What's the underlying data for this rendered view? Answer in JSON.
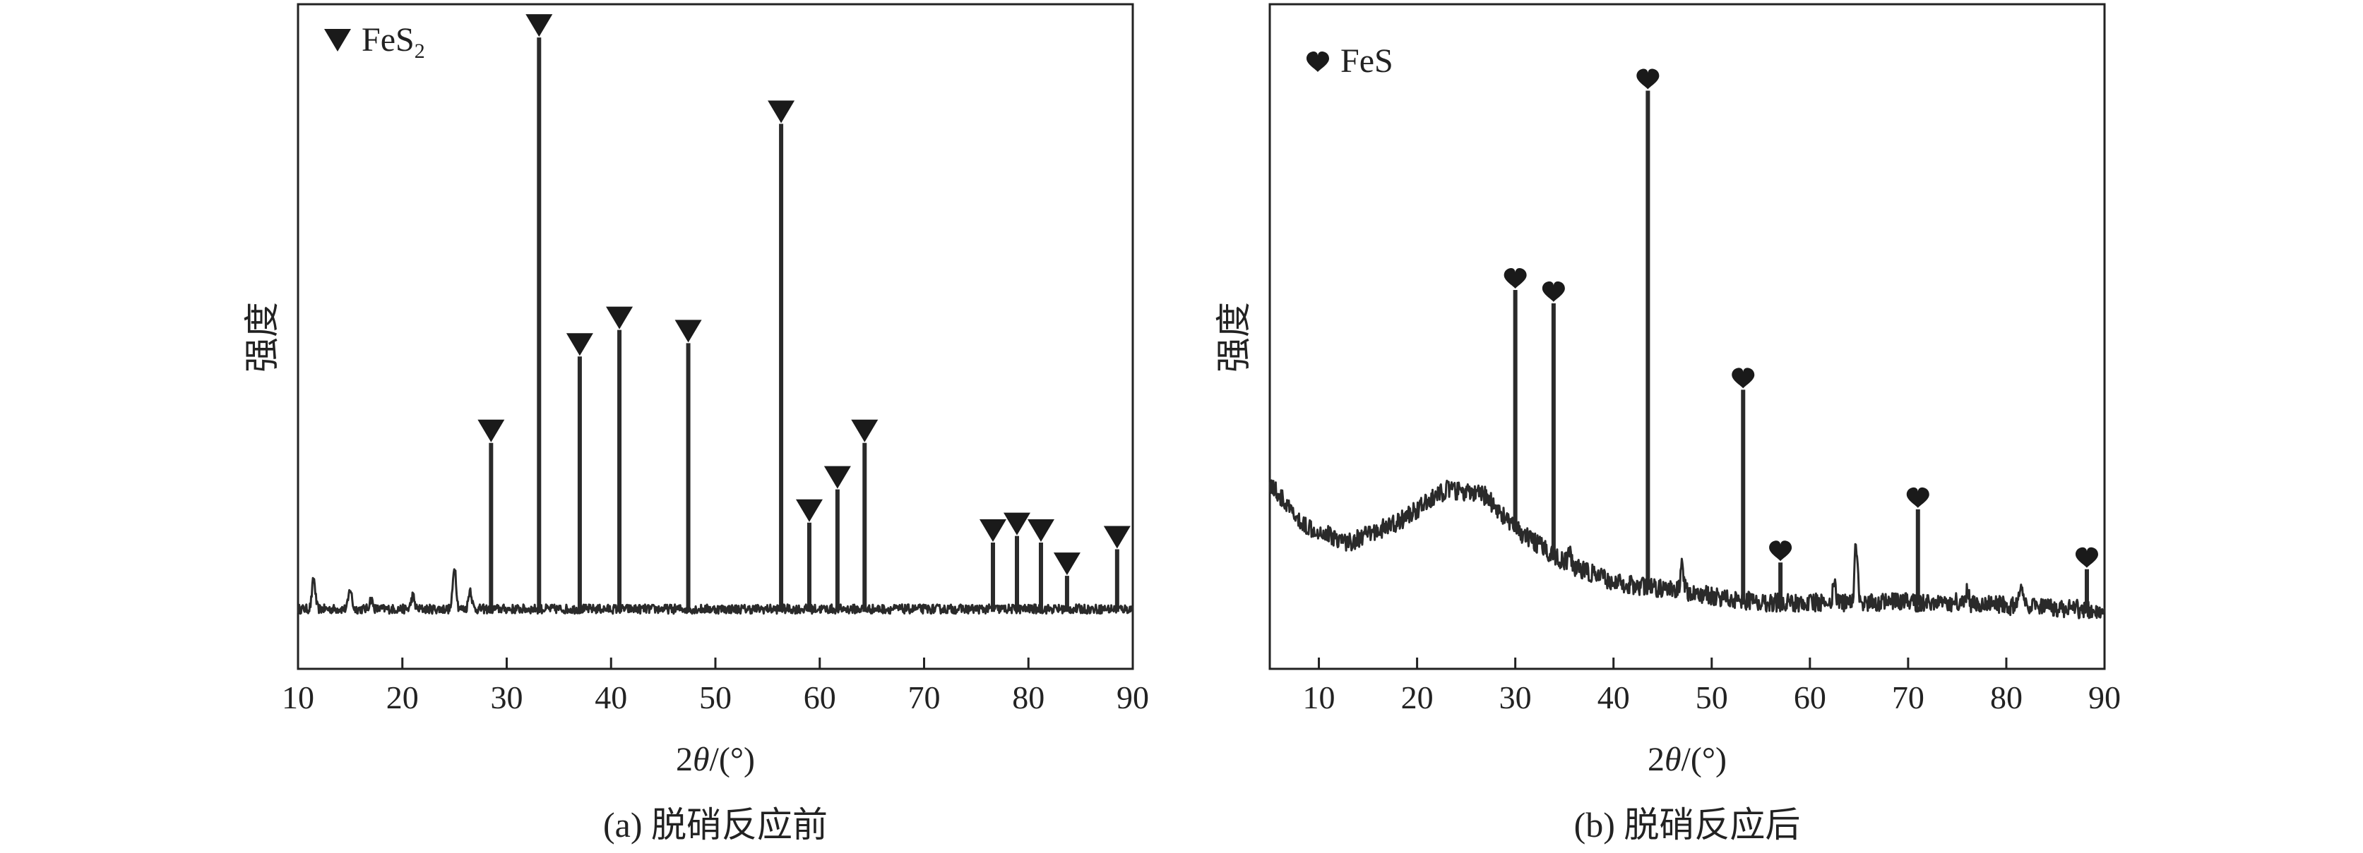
{
  "chart_data": [
    {
      "type": "line",
      "panel": "a",
      "caption": "(a) 脱硝反应前",
      "xlabel_prefix": "2",
      "xlabel_theta": "θ",
      "xlabel_suffix": "/(°)",
      "ylabel": "强度",
      "xlim": [
        10,
        90
      ],
      "xticks": [
        10,
        20,
        30,
        40,
        50,
        60,
        70,
        80,
        90
      ],
      "ylim": [
        0,
        100
      ],
      "legend": {
        "position": "top-left",
        "marker": "triangle-down",
        "text": "FeS",
        "sub": "2"
      },
      "baseline": 9,
      "noise": 0.7,
      "marker_color": "#1a1a1a",
      "background_peaks": [
        {
          "x": 11.5,
          "y": 13.5
        },
        {
          "x": 15.0,
          "y": 12.0
        },
        {
          "x": 17.0,
          "y": 10.5
        },
        {
          "x": 21.0,
          "y": 11.0
        },
        {
          "x": 25.0,
          "y": 15.5
        },
        {
          "x": 26.5,
          "y": 12.0
        }
      ],
      "peaks": [
        {
          "x": 28.5,
          "y": 34,
          "marker": true
        },
        {
          "x": 33.1,
          "y": 95,
          "marker": true
        },
        {
          "x": 37.0,
          "y": 47,
          "marker": true
        },
        {
          "x": 40.8,
          "y": 51,
          "marker": true
        },
        {
          "x": 47.4,
          "y": 49,
          "marker": true
        },
        {
          "x": 56.3,
          "y": 82,
          "marker": true
        },
        {
          "x": 59.0,
          "y": 22,
          "marker": true
        },
        {
          "x": 61.7,
          "y": 27,
          "marker": true
        },
        {
          "x": 64.3,
          "y": 34,
          "marker": true
        },
        {
          "x": 76.6,
          "y": 19,
          "marker": true
        },
        {
          "x": 78.9,
          "y": 20,
          "marker": true
        },
        {
          "x": 81.2,
          "y": 19,
          "marker": true
        },
        {
          "x": 83.7,
          "y": 14,
          "marker": true
        },
        {
          "x": 88.5,
          "y": 18,
          "marker": true
        }
      ]
    },
    {
      "type": "line",
      "panel": "b",
      "caption": "(b) 脱硝反应后",
      "xlabel_prefix": "2",
      "xlabel_theta": "θ",
      "xlabel_suffix": "/(°)",
      "ylabel": "强度",
      "xlim": [
        5,
        90
      ],
      "xticks": [
        10,
        20,
        30,
        40,
        50,
        60,
        70,
        80,
        90
      ],
      "ylim": [
        0,
        100
      ],
      "legend": {
        "position": "top-left",
        "marker": "heart",
        "text": "FeS",
        "sub": ""
      },
      "baseline_curve": [
        {
          "x": 5,
          "y": 28
        },
        {
          "x": 8,
          "y": 22
        },
        {
          "x": 13,
          "y": 19
        },
        {
          "x": 18,
          "y": 22
        },
        {
          "x": 23,
          "y": 27
        },
        {
          "x": 27,
          "y": 26
        },
        {
          "x": 30,
          "y": 21
        },
        {
          "x": 35,
          "y": 16
        },
        {
          "x": 40,
          "y": 13
        },
        {
          "x": 45,
          "y": 12
        },
        {
          "x": 55,
          "y": 10
        },
        {
          "x": 65,
          "y": 10
        },
        {
          "x": 75,
          "y": 10
        },
        {
          "x": 85,
          "y": 9
        },
        {
          "x": 90,
          "y": 9
        }
      ],
      "noise": 1.4,
      "marker_color": "#1a1a1a",
      "background_peaks": [
        {
          "x": 35.5,
          "y": 17.5
        },
        {
          "x": 47.0,
          "y": 16.0
        },
        {
          "x": 62.5,
          "y": 13.0
        },
        {
          "x": 64.7,
          "y": 18.5
        },
        {
          "x": 76.0,
          "y": 11.5
        },
        {
          "x": 81.5,
          "y": 12.0
        }
      ],
      "peaks": [
        {
          "x": 30.0,
          "y": 57,
          "marker": true
        },
        {
          "x": 33.9,
          "y": 55,
          "marker": true
        },
        {
          "x": 43.5,
          "y": 87,
          "marker": true
        },
        {
          "x": 53.2,
          "y": 42,
          "marker": true
        },
        {
          "x": 57.0,
          "y": 16,
          "marker": true
        },
        {
          "x": 71.0,
          "y": 24,
          "marker": true
        },
        {
          "x": 88.2,
          "y": 15,
          "marker": true
        }
      ]
    }
  ]
}
